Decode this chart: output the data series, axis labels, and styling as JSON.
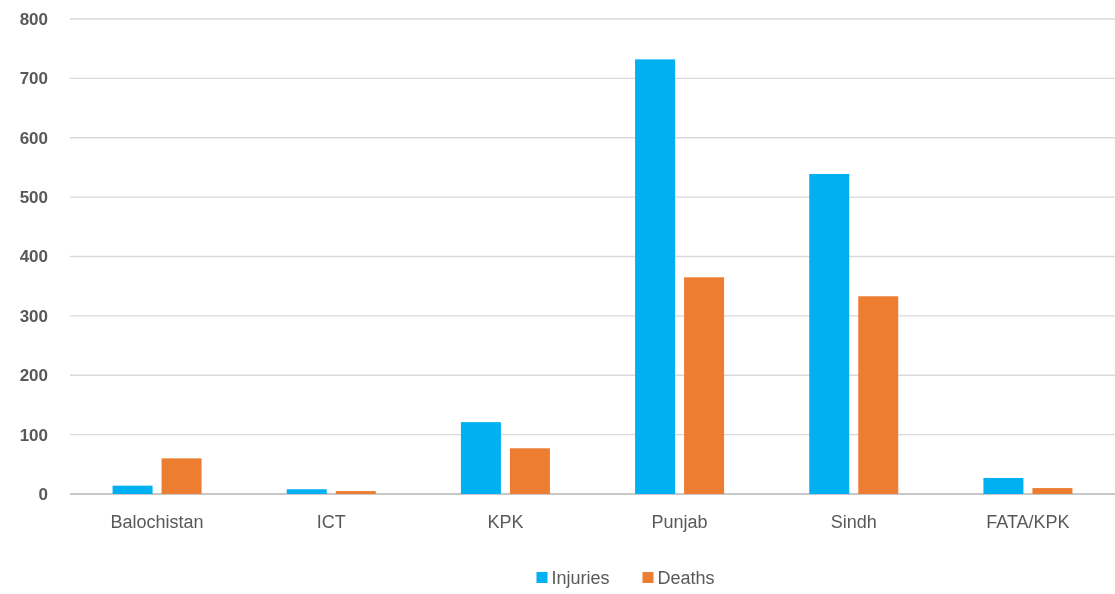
{
  "chart_data": {
    "type": "bar",
    "categories": [
      "Balochistan",
      "ICT",
      "KPK",
      "Punjab",
      "Sindh",
      "FATA/KPK"
    ],
    "series": [
      {
        "name": "Injuries",
        "color": "#00b0f0",
        "values": [
          14,
          8,
          121,
          732,
          539,
          27
        ]
      },
      {
        "name": "Deaths",
        "color": "#ed7d31",
        "values": [
          60,
          5,
          77,
          365,
          333,
          10
        ]
      }
    ],
    "ylim": [
      0,
      800
    ],
    "yticks": [
      0,
      100,
      200,
      300,
      400,
      500,
      600,
      700,
      800
    ],
    "grid": "y",
    "legend": "bottom"
  }
}
